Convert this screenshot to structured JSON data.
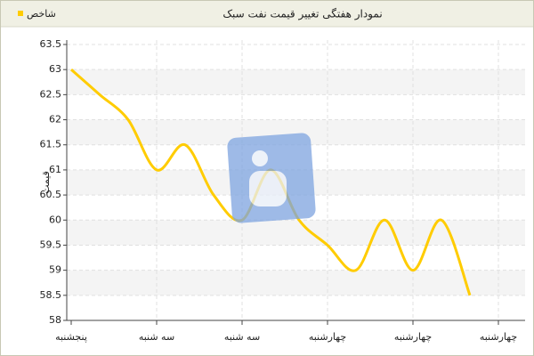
{
  "chart_data": {
    "type": "line",
    "title": "نمودار هفتگی تغییر قیمت نفت سبک",
    "y_label": "قیمت",
    "categories": [
      "پنجشنبه",
      null,
      null,
      "سه شنبه",
      null,
      null,
      "سه شنبه",
      null,
      null,
      "چهارشنبه",
      null,
      null,
      "چهارشنبه",
      null,
      null,
      "چهارشنبه"
    ],
    "series": [
      {
        "name": "شاخص",
        "color": "#ffcc00",
        "values": [
          63,
          62.5,
          62,
          61,
          61.5,
          60.5,
          60,
          61,
          60,
          59.5,
          59,
          60,
          59,
          60,
          58.5,
          null
        ]
      }
    ],
    "ylim": [
      58,
      63.5
    ],
    "yticks": [
      58,
      58.5,
      59,
      59.5,
      60,
      60.5,
      61,
      61.5,
      62,
      62.5,
      63,
      63.5
    ],
    "grid": true,
    "legend": "top-left"
  }
}
